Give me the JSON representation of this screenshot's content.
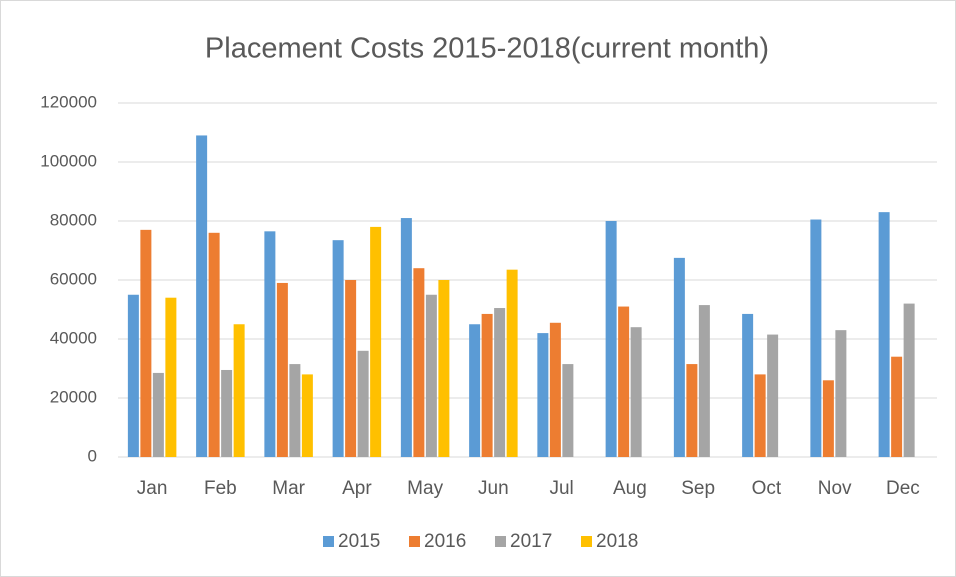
{
  "chart_data": {
    "type": "bar",
    "title": "Placement Costs 2015-2018(current month)",
    "categories": [
      "Jan",
      "Feb",
      "Mar",
      "Apr",
      "May",
      "Jun",
      "Jul",
      "Aug",
      "Sep",
      "Oct",
      "Nov",
      "Dec"
    ],
    "series": [
      {
        "name": "2015",
        "color": "#5b9bd5",
        "values": [
          55000,
          109000,
          76500,
          73500,
          81000,
          45000,
          42000,
          80000,
          67500,
          48500,
          80500,
          83000
        ]
      },
      {
        "name": "2016",
        "color": "#ed7d31",
        "values": [
          77000,
          76000,
          59000,
          60000,
          64000,
          48500,
          45500,
          51000,
          31500,
          28000,
          26000,
          34000
        ]
      },
      {
        "name": "2017",
        "color": "#a5a5a5",
        "values": [
          28500,
          29500,
          31500,
          36000,
          55000,
          50500,
          31500,
          44000,
          51500,
          41500,
          43000,
          52000
        ]
      },
      {
        "name": "2018",
        "color": "#ffc000",
        "values": [
          54000,
          45000,
          28000,
          78000,
          60000,
          63500,
          null,
          null,
          null,
          null,
          null,
          null
        ]
      }
    ],
    "ylim": [
      0,
      120000
    ],
    "yticks": [
      0,
      20000,
      40000,
      60000,
      80000,
      100000,
      120000
    ],
    "grid": true,
    "legend": "bottom"
  }
}
